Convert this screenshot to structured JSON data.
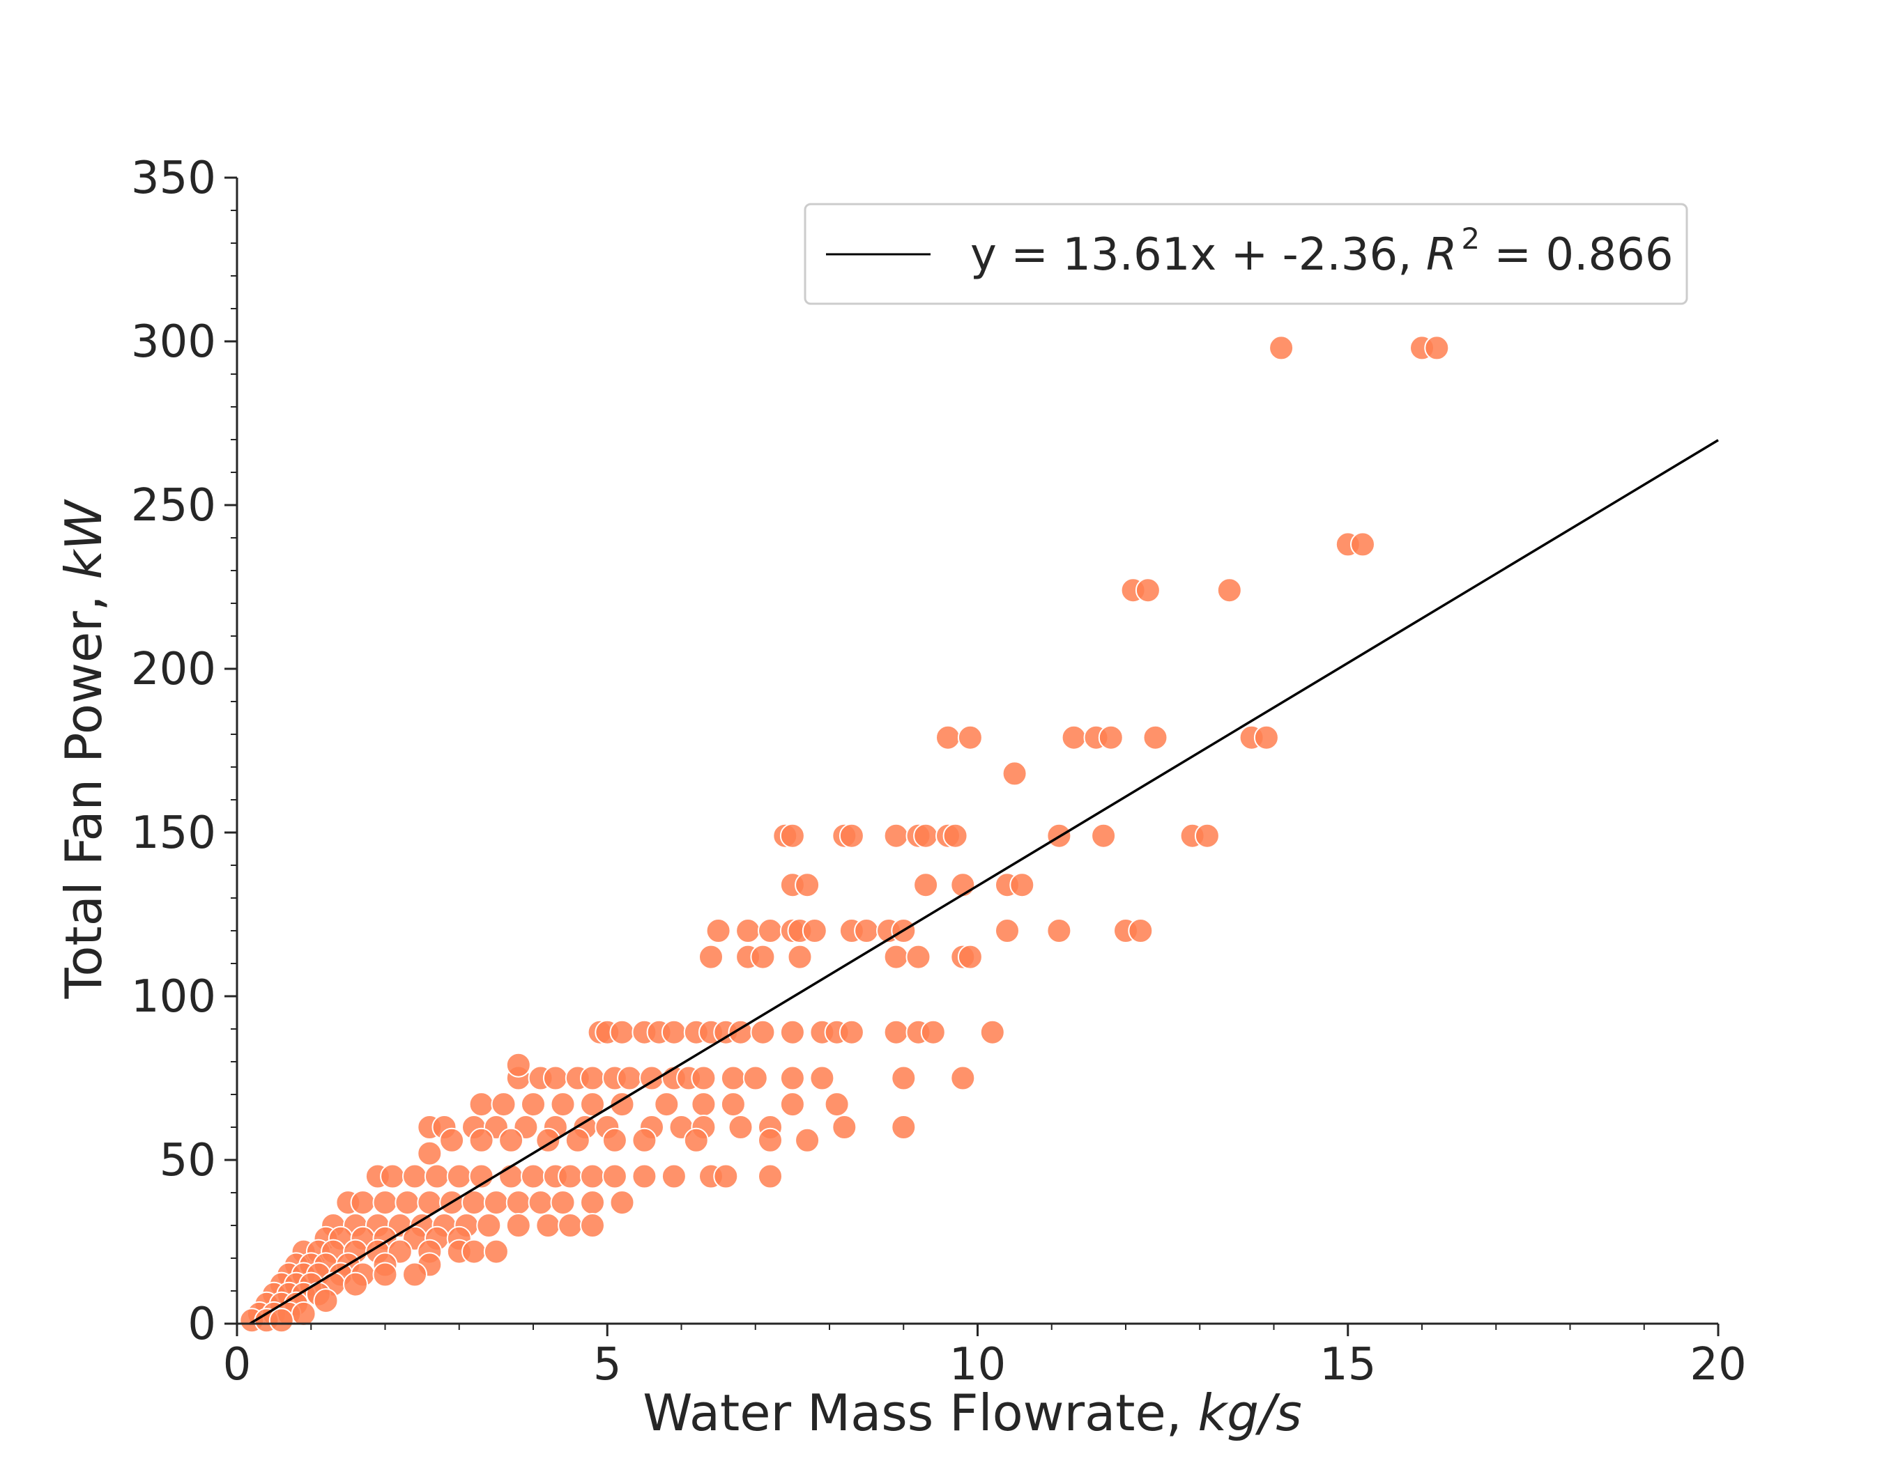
{
  "chart_data": {
    "type": "scatter",
    "title": "",
    "xlabel_main": "Water Mass Flowrate, ",
    "xlabel_unit": "kg/s",
    "ylabel_main": "Total Fan Power, ",
    "ylabel_unit": "kW",
    "xlim": [
      0,
      20
    ],
    "ylim": [
      0,
      350
    ],
    "x_ticks": [
      0,
      5,
      10,
      15,
      20
    ],
    "y_ticks": [
      0,
      50,
      100,
      150,
      200,
      250,
      300,
      350
    ],
    "x_minor_step": 1,
    "y_minor_step": 10,
    "grid": false,
    "legend_position": "top-right",
    "point_color": "#ff7f50",
    "line_color": "#000000",
    "fit": {
      "slope": 13.61,
      "intercept": -2.36,
      "legend_main": "y = 13.61x + -2.36, ",
      "legend_r": "R",
      "legend_exp": "2",
      "legend_tail": " = 0.866",
      "x_range": [
        0.17,
        20
      ]
    },
    "series": [
      {
        "points": [
          [
            14.1,
            298
          ],
          [
            16.0,
            298
          ],
          [
            16.2,
            298
          ],
          [
            15.0,
            238
          ],
          [
            15.2,
            238
          ],
          [
            12.1,
            224
          ],
          [
            12.3,
            224
          ],
          [
            13.4,
            224
          ],
          [
            9.6,
            179
          ],
          [
            9.9,
            179
          ],
          [
            11.3,
            179
          ],
          [
            11.6,
            179
          ],
          [
            11.8,
            179
          ],
          [
            12.4,
            179
          ],
          [
            13.7,
            179
          ],
          [
            13.9,
            179
          ],
          [
            10.5,
            168
          ],
          [
            7.4,
            149
          ],
          [
            7.5,
            149
          ],
          [
            8.2,
            149
          ],
          [
            8.3,
            149
          ],
          [
            8.9,
            149
          ],
          [
            9.2,
            149
          ],
          [
            9.3,
            149
          ],
          [
            9.6,
            149
          ],
          [
            9.7,
            149
          ],
          [
            11.1,
            149
          ],
          [
            11.7,
            149
          ],
          [
            12.9,
            149
          ],
          [
            13.1,
            149
          ],
          [
            7.5,
            134
          ],
          [
            7.7,
            134
          ],
          [
            9.3,
            134
          ],
          [
            9.8,
            134
          ],
          [
            10.4,
            134
          ],
          [
            10.6,
            134
          ],
          [
            6.5,
            120
          ],
          [
            6.9,
            120
          ],
          [
            7.2,
            120
          ],
          [
            7.5,
            120
          ],
          [
            7.6,
            120
          ],
          [
            7.8,
            120
          ],
          [
            8.3,
            120
          ],
          [
            8.5,
            120
          ],
          [
            8.8,
            120
          ],
          [
            9.0,
            120
          ],
          [
            10.4,
            120
          ],
          [
            11.1,
            120
          ],
          [
            12.0,
            120
          ],
          [
            12.2,
            120
          ],
          [
            6.4,
            112
          ],
          [
            6.9,
            112
          ],
          [
            7.1,
            112
          ],
          [
            7.6,
            112
          ],
          [
            8.9,
            112
          ],
          [
            9.2,
            112
          ],
          [
            9.8,
            112
          ],
          [
            9.9,
            112
          ],
          [
            4.9,
            89
          ],
          [
            5.0,
            89
          ],
          [
            5.2,
            89
          ],
          [
            5.5,
            89
          ],
          [
            5.7,
            89
          ],
          [
            5.9,
            89
          ],
          [
            6.2,
            89
          ],
          [
            6.4,
            89
          ],
          [
            6.6,
            89
          ],
          [
            6.8,
            89
          ],
          [
            7.1,
            89
          ],
          [
            7.5,
            89
          ],
          [
            7.9,
            89
          ],
          [
            8.1,
            89
          ],
          [
            8.3,
            89
          ],
          [
            8.9,
            89
          ],
          [
            9.2,
            89
          ],
          [
            9.4,
            89
          ],
          [
            10.2,
            89
          ],
          [
            3.8,
            75
          ],
          [
            4.1,
            75
          ],
          [
            4.3,
            75
          ],
          [
            4.6,
            75
          ],
          [
            4.8,
            75
          ],
          [
            5.1,
            75
          ],
          [
            5.3,
            75
          ],
          [
            5.6,
            75
          ],
          [
            5.9,
            75
          ],
          [
            6.1,
            75
          ],
          [
            6.3,
            75
          ],
          [
            6.7,
            75
          ],
          [
            7.0,
            75
          ],
          [
            7.5,
            75
          ],
          [
            7.9,
            75
          ],
          [
            9.0,
            75
          ],
          [
            9.8,
            75
          ],
          [
            3.8,
            79
          ],
          [
            3.3,
            67
          ],
          [
            3.6,
            67
          ],
          [
            4.0,
            67
          ],
          [
            4.4,
            67
          ],
          [
            4.8,
            67
          ],
          [
            5.2,
            67
          ],
          [
            5.8,
            67
          ],
          [
            6.3,
            67
          ],
          [
            6.7,
            67
          ],
          [
            7.5,
            67
          ],
          [
            8.1,
            67
          ],
          [
            2.6,
            60
          ],
          [
            2.8,
            60
          ],
          [
            3.2,
            60
          ],
          [
            3.5,
            60
          ],
          [
            3.9,
            60
          ],
          [
            4.3,
            60
          ],
          [
            4.7,
            60
          ],
          [
            5.0,
            60
          ],
          [
            5.6,
            60
          ],
          [
            6.0,
            60
          ],
          [
            6.3,
            60
          ],
          [
            6.8,
            60
          ],
          [
            7.2,
            60
          ],
          [
            8.2,
            60
          ],
          [
            9.0,
            60
          ],
          [
            2.9,
            56
          ],
          [
            3.3,
            56
          ],
          [
            3.7,
            56
          ],
          [
            4.2,
            56
          ],
          [
            4.6,
            56
          ],
          [
            5.1,
            56
          ],
          [
            5.5,
            56
          ],
          [
            6.2,
            56
          ],
          [
            7.2,
            56
          ],
          [
            7.7,
            56
          ],
          [
            2.6,
            52
          ],
          [
            1.9,
            45
          ],
          [
            2.1,
            45
          ],
          [
            2.4,
            45
          ],
          [
            2.7,
            45
          ],
          [
            3.0,
            45
          ],
          [
            3.3,
            45
          ],
          [
            3.7,
            45
          ],
          [
            4.0,
            45
          ],
          [
            4.3,
            45
          ],
          [
            4.5,
            45
          ],
          [
            4.8,
            45
          ],
          [
            5.1,
            45
          ],
          [
            5.5,
            45
          ],
          [
            5.9,
            45
          ],
          [
            6.4,
            45
          ],
          [
            6.6,
            45
          ],
          [
            7.2,
            45
          ],
          [
            1.5,
            37
          ],
          [
            1.7,
            37
          ],
          [
            2.0,
            37
          ],
          [
            2.3,
            37
          ],
          [
            2.6,
            37
          ],
          [
            2.9,
            37
          ],
          [
            3.2,
            37
          ],
          [
            3.5,
            37
          ],
          [
            3.8,
            37
          ],
          [
            4.1,
            37
          ],
          [
            4.4,
            37
          ],
          [
            4.8,
            37
          ],
          [
            5.2,
            37
          ],
          [
            1.3,
            30
          ],
          [
            1.6,
            30
          ],
          [
            1.9,
            30
          ],
          [
            2.2,
            30
          ],
          [
            2.5,
            30
          ],
          [
            2.8,
            30
          ],
          [
            3.1,
            30
          ],
          [
            3.4,
            30
          ],
          [
            3.8,
            30
          ],
          [
            4.2,
            30
          ],
          [
            4.5,
            30
          ],
          [
            4.8,
            30
          ],
          [
            1.2,
            26
          ],
          [
            1.4,
            26
          ],
          [
            1.7,
            26
          ],
          [
            2.0,
            26
          ],
          [
            2.4,
            26
          ],
          [
            2.7,
            26
          ],
          [
            3.0,
            26
          ],
          [
            0.9,
            22
          ],
          [
            1.1,
            22
          ],
          [
            1.3,
            22
          ],
          [
            1.6,
            22
          ],
          [
            1.9,
            22
          ],
          [
            2.2,
            22
          ],
          [
            2.6,
            22
          ],
          [
            3.0,
            22
          ],
          [
            3.2,
            22
          ],
          [
            3.5,
            22
          ],
          [
            0.8,
            18
          ],
          [
            1.0,
            18
          ],
          [
            1.2,
            18
          ],
          [
            1.5,
            18
          ],
          [
            2.0,
            18
          ],
          [
            2.6,
            18
          ],
          [
            0.7,
            15
          ],
          [
            0.9,
            15
          ],
          [
            1.1,
            15
          ],
          [
            1.4,
            15
          ],
          [
            1.7,
            15
          ],
          [
            2.0,
            15
          ],
          [
            2.4,
            15
          ],
          [
            0.6,
            12
          ],
          [
            0.8,
            12
          ],
          [
            1.0,
            12
          ],
          [
            1.3,
            12
          ],
          [
            1.6,
            12
          ],
          [
            0.5,
            9
          ],
          [
            0.7,
            9
          ],
          [
            0.9,
            9
          ],
          [
            1.1,
            9
          ],
          [
            0.4,
            6
          ],
          [
            0.6,
            6
          ],
          [
            0.8,
            6
          ],
          [
            1.2,
            7
          ],
          [
            0.3,
            3
          ],
          [
            0.5,
            3
          ],
          [
            0.7,
            3
          ],
          [
            0.9,
            3
          ],
          [
            0.2,
            1
          ],
          [
            0.4,
            1
          ],
          [
            0.6,
            1
          ]
        ]
      }
    ]
  }
}
